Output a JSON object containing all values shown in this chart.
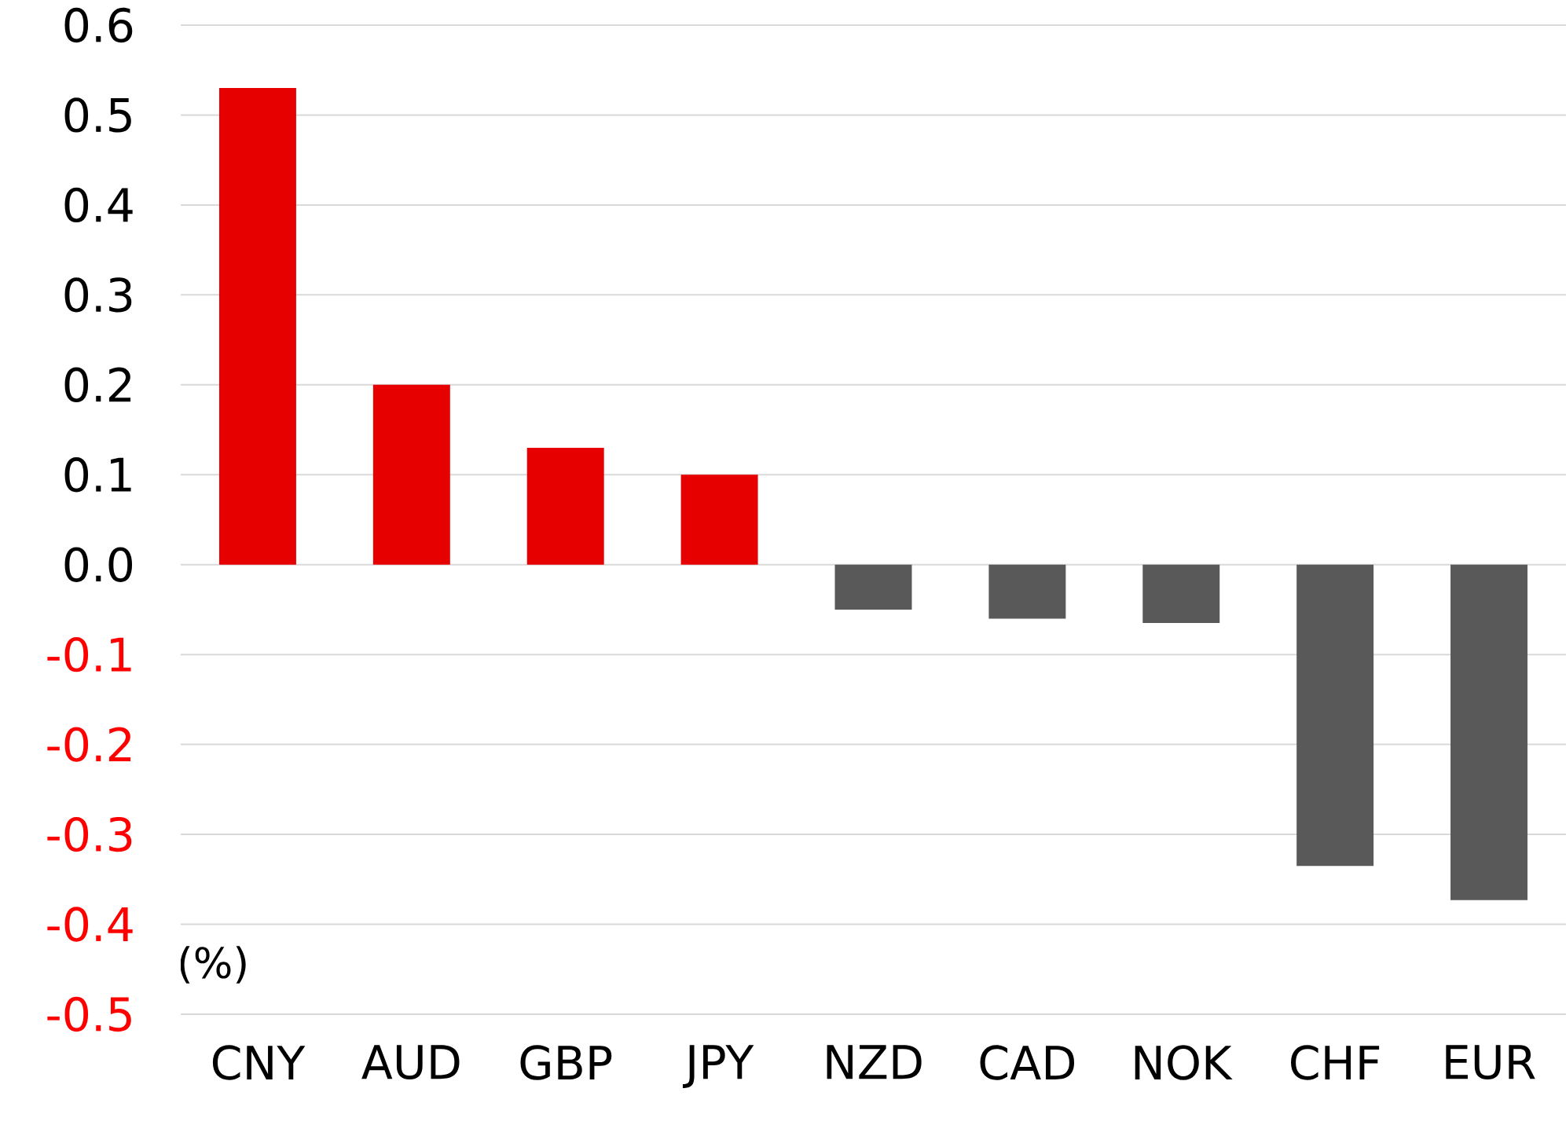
{
  "chart_data": {
    "type": "bar",
    "ylabel": "(%)",
    "categories": [
      "CNY",
      "AUD",
      "GBP",
      "JPY",
      "NZD",
      "CAD",
      "NOK",
      "CHF",
      "EUR"
    ],
    "values": [
      0.53,
      0.2,
      0.13,
      0.1,
      -0.05,
      -0.06,
      -0.065,
      -0.335,
      -0.373
    ],
    "colors": [
      "#e60000",
      "#e60000",
      "#e60000",
      "#e60000",
      "#595959",
      "#595959",
      "#595959",
      "#595959",
      "#595959"
    ],
    "ylim": [
      -0.5,
      0.6
    ],
    "yticks": [
      -0.5,
      -0.4,
      -0.3,
      -0.2,
      -0.1,
      {
        "value": 0,
        "label": "0.0"
      },
      0.1,
      0.2,
      0.3,
      0.4,
      0.5,
      0.6
    ],
    "grid": "y"
  }
}
